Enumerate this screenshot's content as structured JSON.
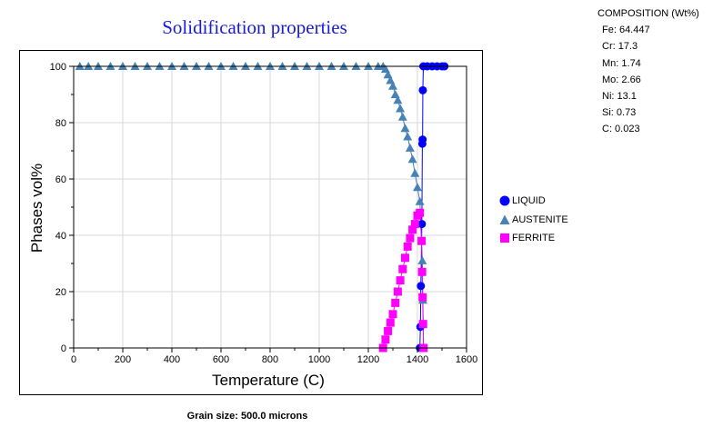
{
  "title": "Solidification properties",
  "composition": {
    "title": "COMPOSITION (Wt%)",
    "items": [
      "Fe: 64.447",
      "Cr: 17.3",
      "Mn: 1.74",
      "Mo: 2.66",
      "Ni: 13.1",
      "Si: 0.73",
      "C: 0.023"
    ]
  },
  "footnote": "Grain size: 500.0 microns",
  "chart_data": {
    "type": "scatter",
    "title": "Solidification properties",
    "xlabel": "Temperature (C)",
    "ylabel": "Phases vol%",
    "xlim": [
      0,
      1600
    ],
    "ylim": [
      0,
      100
    ],
    "xticks": [
      0,
      200,
      400,
      600,
      800,
      1000,
      1200,
      1400,
      1600
    ],
    "yticks": [
      0,
      20,
      40,
      60,
      80,
      100
    ],
    "grid": true,
    "legend_position": "right",
    "series": [
      {
        "name": "LIQUID",
        "color": "#0000ff",
        "marker": "circle",
        "points": [
          [
            1410,
            0
          ],
          [
            1412,
            7.5
          ],
          [
            1414,
            22
          ],
          [
            1418,
            44
          ],
          [
            1420,
            72.5
          ],
          [
            1421,
            74
          ],
          [
            1422,
            91.5
          ],
          [
            1424,
            100
          ],
          [
            1440,
            100
          ],
          [
            1460,
            100
          ],
          [
            1480,
            100
          ],
          [
            1500,
            100
          ],
          [
            1510,
            100
          ]
        ]
      },
      {
        "name": "AUSTENITE",
        "color": "#4682b4",
        "marker": "triangle",
        "points": [
          [
            25,
            100
          ],
          [
            60,
            100
          ],
          [
            100,
            100
          ],
          [
            150,
            100
          ],
          [
            200,
            100
          ],
          [
            250,
            100
          ],
          [
            300,
            100
          ],
          [
            350,
            100
          ],
          [
            400,
            100
          ],
          [
            450,
            100
          ],
          [
            500,
            100
          ],
          [
            550,
            100
          ],
          [
            600,
            100
          ],
          [
            650,
            100
          ],
          [
            700,
            100
          ],
          [
            750,
            100
          ],
          [
            800,
            100
          ],
          [
            850,
            100
          ],
          [
            900,
            100
          ],
          [
            950,
            100
          ],
          [
            1000,
            100
          ],
          [
            1050,
            100
          ],
          [
            1100,
            100
          ],
          [
            1150,
            100
          ],
          [
            1200,
            100
          ],
          [
            1240,
            100
          ],
          [
            1260,
            100
          ],
          [
            1270,
            99
          ],
          [
            1280,
            97
          ],
          [
            1290,
            95
          ],
          [
            1300,
            93
          ],
          [
            1310,
            90
          ],
          [
            1320,
            88
          ],
          [
            1330,
            85
          ],
          [
            1340,
            82
          ],
          [
            1350,
            78
          ],
          [
            1360,
            75
          ],
          [
            1370,
            71
          ],
          [
            1380,
            67
          ],
          [
            1390,
            62
          ],
          [
            1400,
            57
          ],
          [
            1410,
            52
          ],
          [
            1420,
            31
          ],
          [
            1422,
            17
          ],
          [
            1425,
            0
          ]
        ]
      },
      {
        "name": "FERRITE",
        "color": "#ff00ff",
        "marker": "square",
        "points": [
          [
            1260,
            0
          ],
          [
            1270,
            3
          ],
          [
            1280,
            6
          ],
          [
            1290,
            9
          ],
          [
            1300,
            12
          ],
          [
            1310,
            16
          ],
          [
            1320,
            20
          ],
          [
            1330,
            24
          ],
          [
            1340,
            28
          ],
          [
            1350,
            32
          ],
          [
            1360,
            36
          ],
          [
            1370,
            39
          ],
          [
            1380,
            42
          ],
          [
            1390,
            44
          ],
          [
            1400,
            47
          ],
          [
            1410,
            48
          ],
          [
            1417,
            38
          ],
          [
            1419,
            27
          ],
          [
            1421,
            18
          ],
          [
            1423,
            8.5
          ],
          [
            1425,
            0
          ]
        ]
      }
    ]
  }
}
